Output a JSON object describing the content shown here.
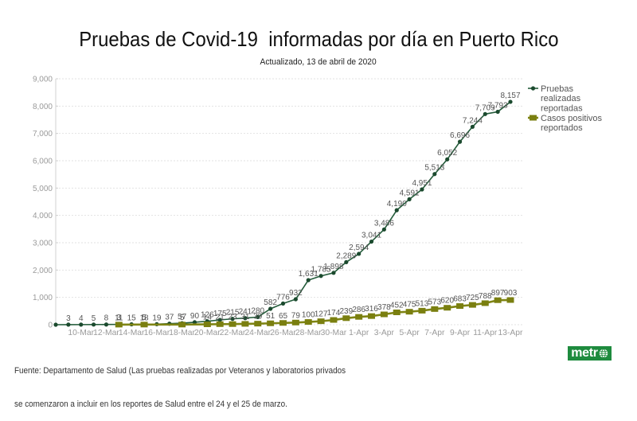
{
  "header": {
    "title": "Pruebas de Covid-19  informadas por día en Puerto Rico",
    "subtitle": "Actualizado, 13 de abril de 2020"
  },
  "footer": {
    "source_line1": "Fuente: Departamento de Salud (Las pruebas realizadas por Veteranos y laboratorios privados",
    "source_line2": "se comenzaron a incluir en los reportes de Salud entre el 24 y el 25 de marzo."
  },
  "logo": {
    "brand": "metro",
    "text_before_icon": "metr",
    "icon": "globe-icon",
    "color": "#1e8b3e"
  },
  "chart_data": {
    "type": "line",
    "title": "Pruebas de Covid-19  informadas por día en Puerto Rico",
    "subtitle": "Actualizado, 13 de abril de 2020",
    "xlabel": "",
    "ylabel": "",
    "ylim": [
      0,
      9000
    ],
    "y_ticks": [
      0,
      1000,
      2000,
      3000,
      4000,
      5000,
      6000,
      7000,
      8000,
      9000
    ],
    "y_tick_labels": [
      "0",
      "1,000",
      "2,000",
      "3,000",
      "4,000",
      "5,000",
      "6,000",
      "7,000",
      "8,000",
      "9,000"
    ],
    "grid": true,
    "legend_position": "right",
    "categories": [
      "8-Mar",
      "9-Mar",
      "10-Mar",
      "11-Mar",
      "12-Mar",
      "13-Mar",
      "14-Mar",
      "15-Mar",
      "16-Mar",
      "17-Mar",
      "18-Mar",
      "19-Mar",
      "20-Mar",
      "21-Mar",
      "22-Mar",
      "23-Mar",
      "24-Mar",
      "25-Mar",
      "26-Mar",
      "27-Mar",
      "28-Mar",
      "29-Mar",
      "30-Mar",
      "31-Mar",
      "1-Apr",
      "2-Apr",
      "3-Apr",
      "4-Apr",
      "5-Apr",
      "6-Apr",
      "7-Apr",
      "8-Apr",
      "9-Apr",
      "10-Apr",
      "11-Apr",
      "12-Apr",
      "13-Apr"
    ],
    "x_tick_labels": [
      "10-Mar",
      "12-Mar",
      "14-Mar",
      "16-Mar",
      "18-Mar",
      "20-Mar",
      "22-Mar",
      "24-Mar",
      "26-Mar",
      "28-Mar",
      "30-Mar",
      "1-Apr",
      "3-Apr",
      "5-Apr",
      "7-Apr",
      "9-Apr",
      "11-Apr",
      "13-Apr"
    ],
    "series": [
      {
        "name": "Pruebas realizadas reportadas",
        "legend_lines": [
          "Pruebas",
          "realizadas",
          "reportadas"
        ],
        "marker": "circle",
        "color": "#245c3b",
        "marker_color": "#1b4a2e",
        "values": [
          0,
          3,
          4,
          5,
          8,
          11,
          15,
          18,
          19,
          37,
          57,
          90,
          126,
          175,
          215,
          241,
          280,
          582,
          776,
          932,
          1631,
          1785,
          1898,
          2289,
          2594,
          3041,
          3486,
          4190,
          4591,
          4951,
          5513,
          6052,
          6696,
          7244,
          7709,
          7793,
          8157
        ],
        "labels": [
          "",
          "3",
          "4",
          "5",
          "8",
          "11",
          "15",
          "18",
          "19",
          "37",
          "57",
          "90",
          "126",
          "175",
          "215",
          "241",
          "280",
          "582",
          "776",
          "932",
          "1,631",
          "1,785",
          "1,898",
          "2,289",
          "2,594",
          "3,041",
          "3,486",
          "4,190",
          "4,591",
          "4,951",
          "5,513",
          "6,052",
          "6,696",
          "7,244",
          "7,709",
          "7,793",
          "8,157"
        ]
      },
      {
        "name": "Casos positivos reportados",
        "legend_lines": [
          "Casos positivos",
          "reportados"
        ],
        "marker": "square",
        "color": "#7f8514",
        "marker_color": "#7a7f10",
        "values": [
          null,
          null,
          null,
          null,
          null,
          3,
          null,
          5,
          null,
          null,
          5,
          null,
          14,
          21,
          23,
          31,
          39,
          51,
          65,
          79,
          100,
          127,
          174,
          239,
          286,
          316,
          378,
          452,
          475,
          513,
          573,
          620,
          683,
          725,
          788,
          897,
          903
        ],
        "labels": [
          null,
          null,
          null,
          null,
          null,
          "3",
          null,
          "5",
          null,
          null,
          "5",
          null,
          "14",
          "21",
          "23",
          "31",
          "39",
          "51",
          "65",
          "79",
          "100",
          "127",
          "174",
          "239",
          "286",
          "316",
          "378",
          "452",
          "475",
          "513",
          "573",
          "620",
          "683",
          "725",
          "788",
          "897",
          "903"
        ]
      }
    ]
  }
}
